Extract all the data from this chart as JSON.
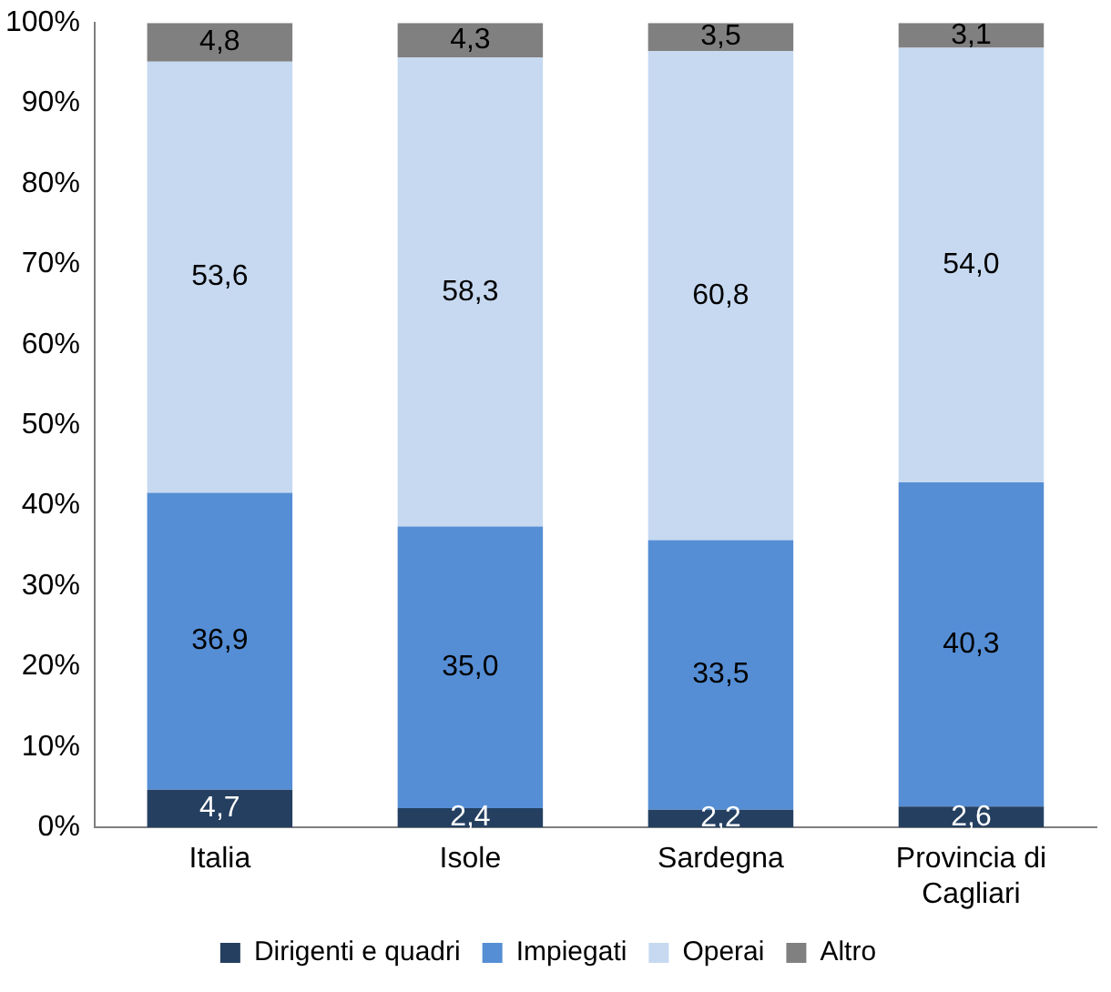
{
  "chart_data": {
    "type": "bar",
    "stacked": true,
    "categories": [
      "Italia",
      "Isole",
      "Sardegna",
      "Provincia di Cagliari"
    ],
    "series": [
      {
        "name": "Dirigenti e quadri",
        "color": "#243f60",
        "values": [
          4.7,
          2.4,
          2.2,
          2.6
        ],
        "value_labels": [
          "4,7",
          "2,4",
          "2,2",
          "2,6"
        ]
      },
      {
        "name": "Impiegati",
        "color": "#558ed5",
        "values": [
          36.9,
          35.0,
          33.5,
          40.3
        ],
        "value_labels": [
          "36,9",
          "35,0",
          "33,5",
          "40,3"
        ]
      },
      {
        "name": "Operai",
        "color": "#c6d9f1",
        "values": [
          53.6,
          58.3,
          60.8,
          54.0
        ],
        "value_labels": [
          "53,6",
          "58,3",
          "60,8",
          "54,0"
        ]
      },
      {
        "name": "Altro",
        "color": "#808080",
        "values": [
          4.8,
          4.3,
          3.5,
          3.1
        ],
        "value_labels": [
          "4,8",
          "4,3",
          "3,5",
          "3,1"
        ]
      }
    ],
    "ylim": [
      0,
      100
    ],
    "yticks": [
      {
        "value": 0,
        "label": "0%"
      },
      {
        "value": 10,
        "label": "10%"
      },
      {
        "value": 20,
        "label": "20%"
      },
      {
        "value": 30,
        "label": "30%"
      },
      {
        "value": 40,
        "label": "40%"
      },
      {
        "value": 50,
        "label": "50%"
      },
      {
        "value": 60,
        "label": "60%"
      },
      {
        "value": 70,
        "label": "70%"
      },
      {
        "value": 80,
        "label": "80%"
      },
      {
        "value": 90,
        "label": "90%"
      },
      {
        "value": 100,
        "label": "100%"
      }
    ],
    "grid": false,
    "legend": "bottom"
  }
}
